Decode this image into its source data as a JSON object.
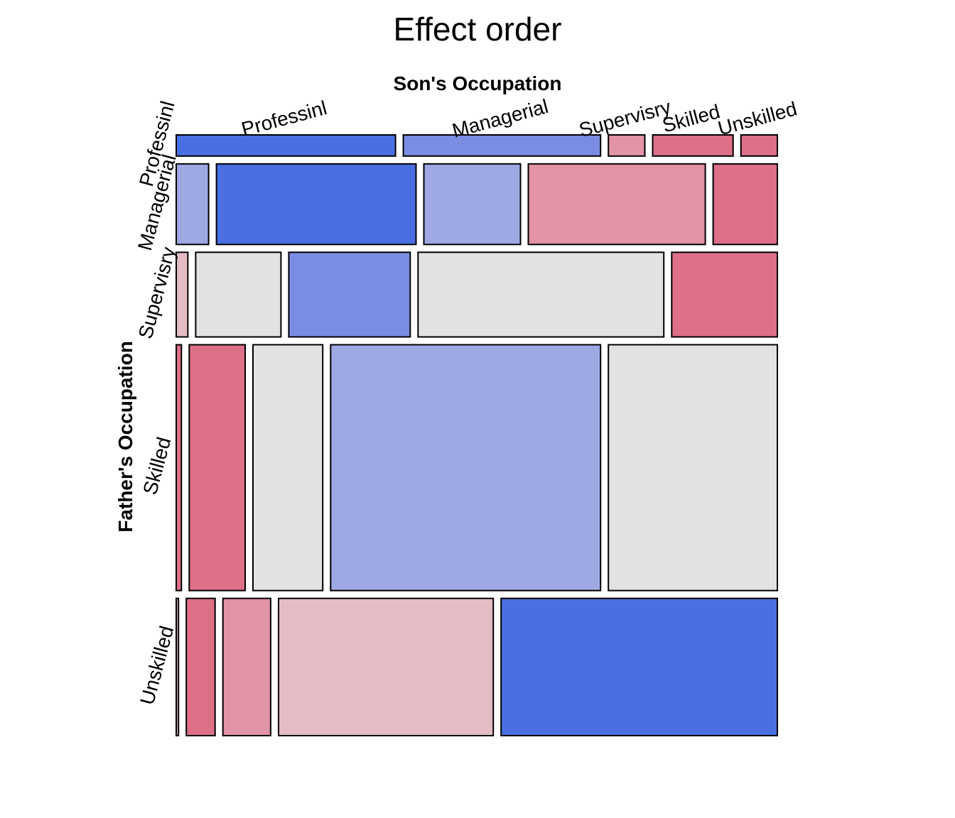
{
  "chart_data": {
    "type": "mosaic",
    "title": "Effect order",
    "col_variable": "Son's Occupation",
    "row_variable": "Father's Occupation",
    "cols": [
      "Professinl",
      "Managerial",
      "Supervisry",
      "Skilled",
      "Unskilled"
    ],
    "rows": [
      {
        "label": "Professinl",
        "fraction": 0.037,
        "cells": [
          {
            "share": 0.379,
            "fill": "#4a6fe3"
          },
          {
            "share": 0.341,
            "fill": "#7a8de2"
          },
          {
            "share": 0.063,
            "fill": "#e293a6"
          },
          {
            "share": 0.139,
            "fill": "#dd6f87"
          },
          {
            "share": 0.063,
            "fill": "#dd6f87"
          }
        ]
      },
      {
        "label": "Managerial",
        "fraction": 0.141,
        "cells": [
          {
            "share": 0.056,
            "fill": "#9ea8e3"
          },
          {
            "share": 0.345,
            "fill": "#4a6fe3"
          },
          {
            "share": 0.167,
            "fill": "#9ea8e3"
          },
          {
            "share": 0.306,
            "fill": "#e293a6"
          },
          {
            "share": 0.111,
            "fill": "#dd6f87"
          }
        ]
      },
      {
        "label": "Supervisry",
        "fraction": 0.148,
        "cells": [
          {
            "share": 0.02,
            "fill": "#e4bcc4"
          },
          {
            "share": 0.146,
            "fill": "#e2e2e2"
          },
          {
            "share": 0.208,
            "fill": "#7a8de2"
          },
          {
            "share": 0.421,
            "fill": "#e2e2e2"
          },
          {
            "share": 0.181,
            "fill": "#dd6f87"
          }
        ]
      },
      {
        "label": "Skilled",
        "fraction": 0.43,
        "cells": [
          {
            "share": 0.009,
            "fill": "#dd6f87"
          },
          {
            "share": 0.097,
            "fill": "#dd6f87"
          },
          {
            "share": 0.121,
            "fill": "#e2e2e2"
          },
          {
            "share": 0.468,
            "fill": "#9ea8e3"
          },
          {
            "share": 0.293,
            "fill": "#e2e2e2"
          }
        ]
      },
      {
        "label": "Unskilled",
        "fraction": 0.24,
        "cells": [
          {
            "share": 0.004,
            "fill": "#e4bcc4"
          },
          {
            "share": 0.05,
            "fill": "#dd6f87"
          },
          {
            "share": 0.083,
            "fill": "#e293a6"
          },
          {
            "share": 0.373,
            "fill": "#e4bcc4"
          },
          {
            "share": 0.48,
            "fill": "#4a6fe3"
          }
        ]
      }
    ],
    "legend": "none"
  }
}
